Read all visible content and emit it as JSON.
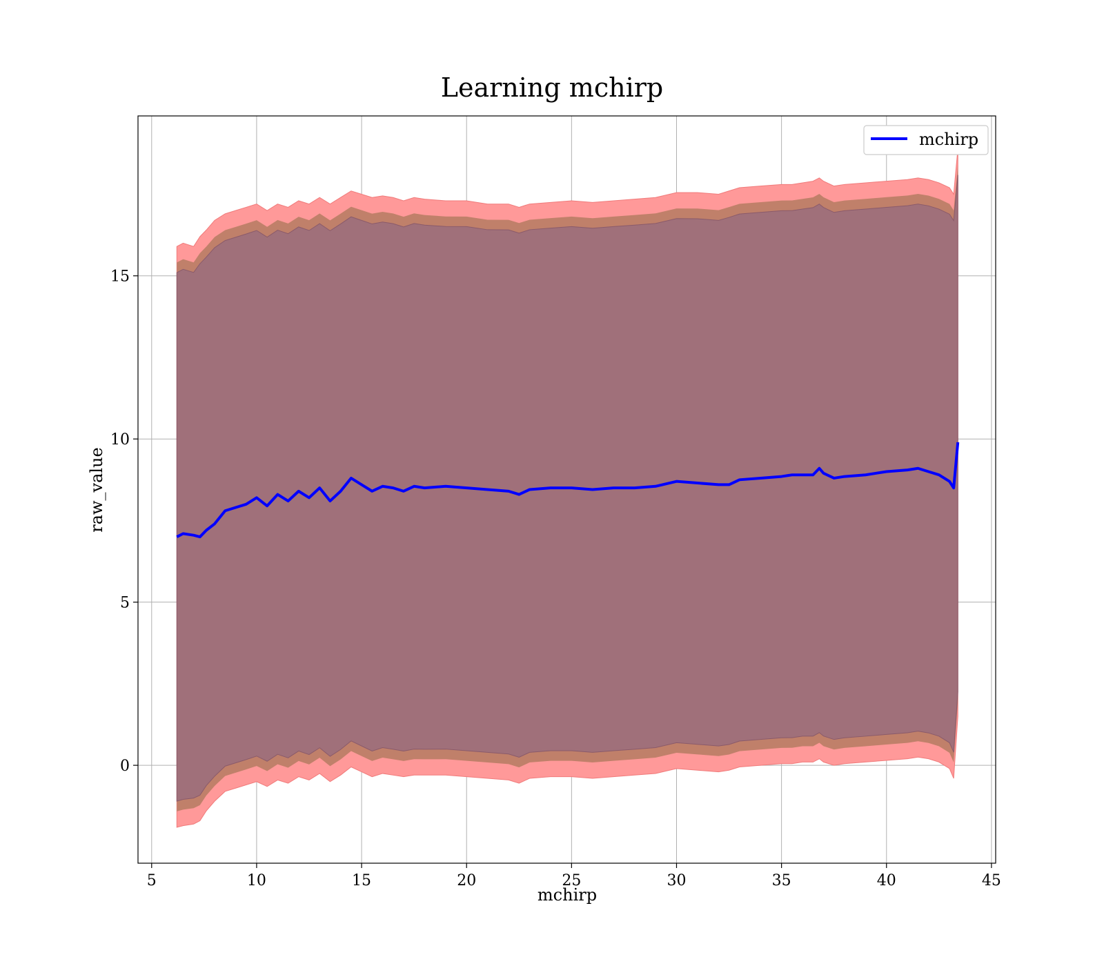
{
  "chart_data": {
    "type": "line",
    "title": "Learning mchirp",
    "xlabel": "mchirp",
    "ylabel": "raw_value",
    "xlim": [
      4.35,
      45.2
    ],
    "ylim": [
      -3.0,
      19.9
    ],
    "xticks": [
      5,
      10,
      15,
      20,
      25,
      30,
      35,
      40,
      45
    ],
    "yticks": [
      0,
      5,
      10,
      15
    ],
    "grid": true,
    "legend": {
      "position": "top-right",
      "entries": [
        "mchirp"
      ]
    },
    "colors": {
      "line": "#0000ff",
      "band_outer": "#ff9999",
      "band_middle": "#c0806a",
      "band_inner": "#a0707a"
    },
    "series": [
      {
        "name": "mchirp",
        "x": [
          6.2,
          6.5,
          7.0,
          7.3,
          7.6,
          8.0,
          8.5,
          9.0,
          9.5,
          10.0,
          10.5,
          11.0,
          11.5,
          12.0,
          12.5,
          13.0,
          13.5,
          14.0,
          14.5,
          15.0,
          15.5,
          16.0,
          16.5,
          17.0,
          17.5,
          18.0,
          19.0,
          20.0,
          21.0,
          22.0,
          22.5,
          23.0,
          24.0,
          25.0,
          26.0,
          27.0,
          28.0,
          29.0,
          30.0,
          31.0,
          32.0,
          32.5,
          33.0,
          34.0,
          35.0,
          35.5,
          36.0,
          36.5,
          36.8,
          37.0,
          37.5,
          38.0,
          39.0,
          40.0,
          41.0,
          41.5,
          42.0,
          42.5,
          43.0,
          43.2,
          43.4
        ],
        "y": [
          7.0,
          7.1,
          7.05,
          7.0,
          7.2,
          7.4,
          7.8,
          7.9,
          8.0,
          8.2,
          7.95,
          8.3,
          8.1,
          8.4,
          8.2,
          8.5,
          8.1,
          8.4,
          8.8,
          8.6,
          8.4,
          8.55,
          8.5,
          8.4,
          8.55,
          8.5,
          8.55,
          8.5,
          8.45,
          8.4,
          8.3,
          8.45,
          8.5,
          8.5,
          8.45,
          8.5,
          8.5,
          8.55,
          8.7,
          8.65,
          8.6,
          8.6,
          8.75,
          8.8,
          8.85,
          8.9,
          8.9,
          8.9,
          9.1,
          8.95,
          8.8,
          8.85,
          8.9,
          9.0,
          9.05,
          9.1,
          9.0,
          8.9,
          8.7,
          8.5,
          9.9
        ]
      },
      {
        "name": "",
        "upper_outer": [
          15.9,
          16.0,
          15.9,
          16.2,
          16.4,
          16.7,
          16.9,
          17.0,
          17.1,
          17.2,
          17.0,
          17.2,
          17.1,
          17.3,
          17.2,
          17.4,
          17.2,
          17.4,
          17.6,
          17.5,
          17.4,
          17.45,
          17.4,
          17.3,
          17.4,
          17.35,
          17.3,
          17.3,
          17.2,
          17.2,
          17.1,
          17.2,
          17.25,
          17.3,
          17.25,
          17.3,
          17.35,
          17.4,
          17.55,
          17.55,
          17.5,
          17.6,
          17.7,
          17.75,
          17.8,
          17.8,
          17.85,
          17.9,
          18.0,
          17.9,
          17.75,
          17.8,
          17.85,
          17.9,
          17.95,
          18.0,
          17.95,
          17.85,
          17.7,
          17.5,
          18.9
        ],
        "lower_outer": [
          -1.9,
          -1.85,
          -1.8,
          -1.7,
          -1.4,
          -1.1,
          -0.8,
          -0.7,
          -0.6,
          -0.5,
          -0.65,
          -0.45,
          -0.55,
          -0.35,
          -0.45,
          -0.25,
          -0.5,
          -0.3,
          -0.05,
          -0.2,
          -0.35,
          -0.25,
          -0.3,
          -0.35,
          -0.3,
          -0.3,
          -0.3,
          -0.35,
          -0.4,
          -0.45,
          -0.55,
          -0.4,
          -0.35,
          -0.35,
          -0.4,
          -0.35,
          -0.3,
          -0.25,
          -0.1,
          -0.15,
          -0.2,
          -0.15,
          -0.05,
          0.0,
          0.05,
          0.05,
          0.1,
          0.1,
          0.2,
          0.1,
          0.0,
          0.05,
          0.1,
          0.15,
          0.2,
          0.25,
          0.2,
          0.1,
          -0.1,
          -0.4,
          1.5
        ]
      }
    ]
  }
}
